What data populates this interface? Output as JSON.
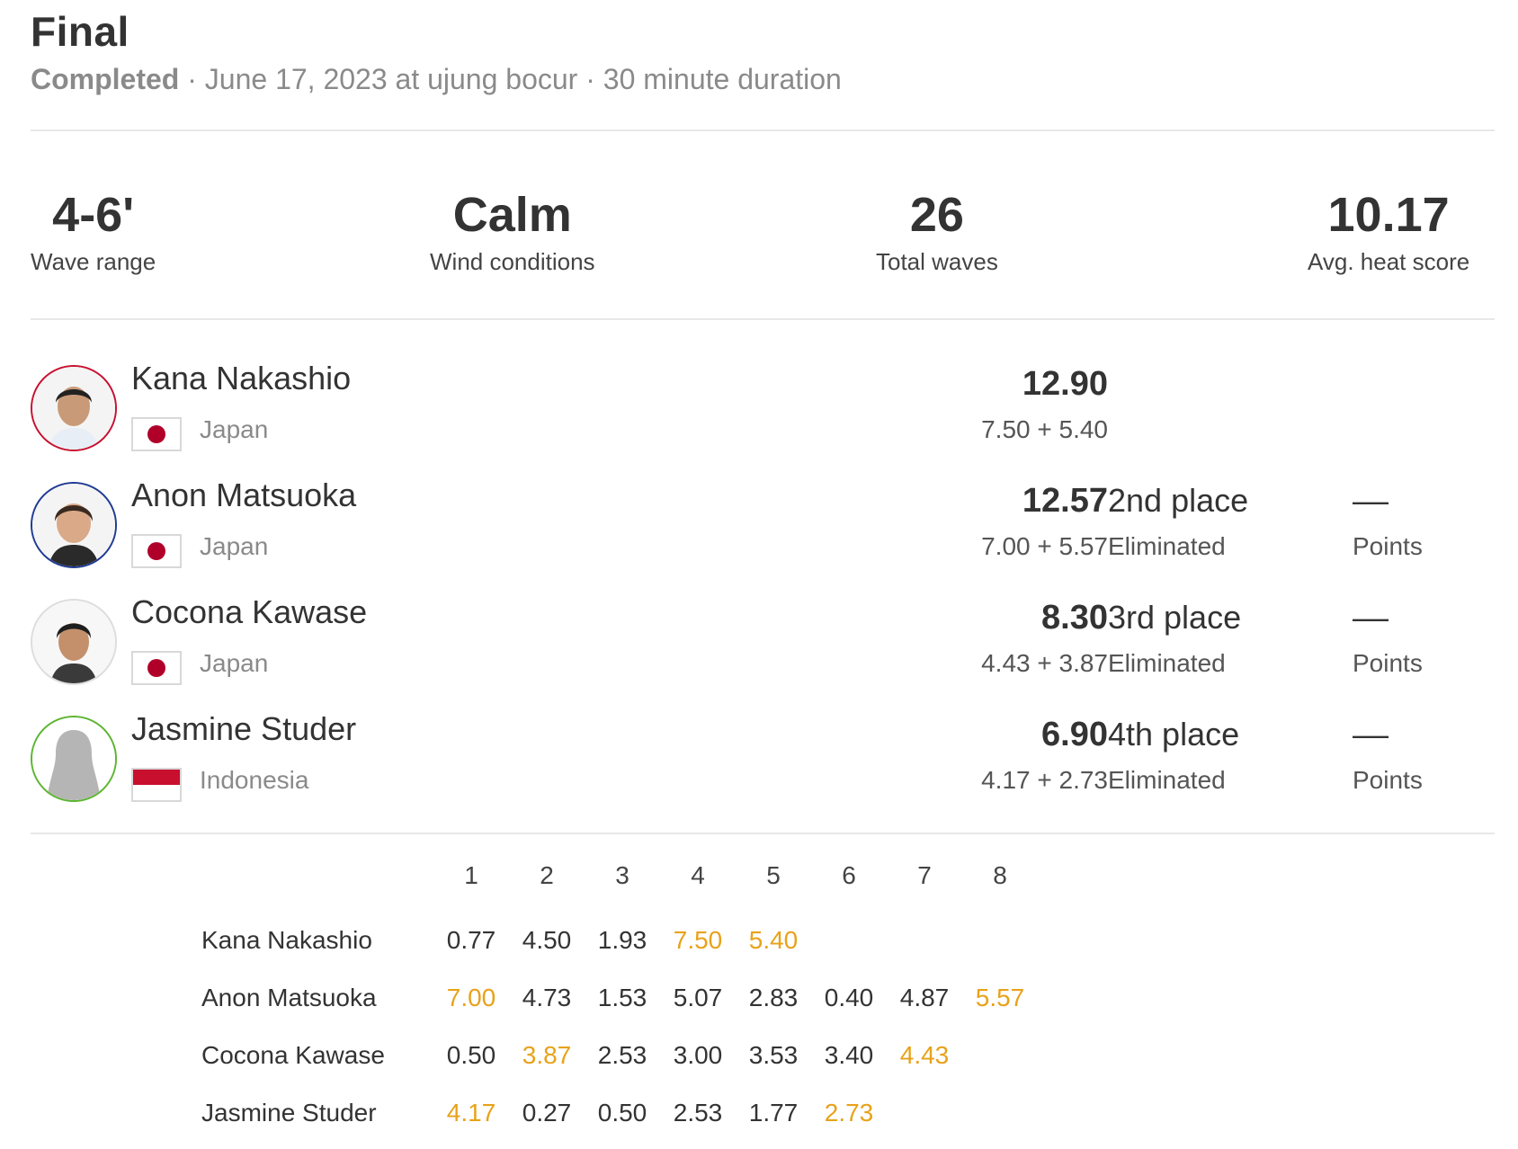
{
  "header": {
    "title": "Final",
    "status": "Completed",
    "details": " · June 17, 2023 at ujung bocur · 30 minute duration"
  },
  "stats": [
    {
      "value": "4-6'",
      "label": "Wave range"
    },
    {
      "value": "Calm",
      "label": "Wind conditions"
    },
    {
      "value": "26",
      "label": "Total waves"
    },
    {
      "value": "10.17",
      "label": "Avg. heat score"
    }
  ],
  "athletes": [
    {
      "name": "Kana Nakashio",
      "country": "Japan",
      "flag": "japan-flag",
      "total": "12.90",
      "breakdown": "7.50 + 5.40",
      "place": "",
      "status": "",
      "points": "",
      "points_label": "",
      "ring_color": "#c8102e"
    },
    {
      "name": "Anon Matsuoka",
      "country": "Japan",
      "flag": "japan-flag",
      "total": "12.57",
      "breakdown": "7.00 + 5.57",
      "place": "2nd place",
      "status": "Eliminated",
      "points": "––",
      "points_label": "Points",
      "ring_color": "#1f3a93"
    },
    {
      "name": "Cocona Kawase",
      "country": "Japan",
      "flag": "japan-flag",
      "total": "8.30",
      "breakdown": "4.43 + 3.87",
      "place": "3rd place",
      "status": "Eliminated",
      "points": "––",
      "points_label": "Points",
      "ring_color": "#dddddd"
    },
    {
      "name": "Jasmine Studer",
      "country": "Indonesia",
      "flag": "indonesia-flag",
      "total": "6.90",
      "breakdown": "4.17 + 2.73",
      "place": "4th place",
      "status": "Eliminated",
      "points": "––",
      "points_label": "Points",
      "ring_color": "#5cb531"
    }
  ],
  "waves": {
    "headers": [
      "1",
      "2",
      "3",
      "4",
      "5",
      "6",
      "7",
      "8"
    ],
    "rows": [
      {
        "name": "Kana Nakashio",
        "scores": [
          "0.77",
          "4.50",
          "1.93",
          "7.50",
          "5.40"
        ],
        "counted": [
          3,
          4
        ]
      },
      {
        "name": "Anon Matsuoka",
        "scores": [
          "7.00",
          "4.73",
          "1.53",
          "5.07",
          "2.83",
          "0.40",
          "4.87",
          "5.57"
        ],
        "counted": [
          0,
          7
        ]
      },
      {
        "name": "Cocona Kawase",
        "scores": [
          "0.50",
          "3.87",
          "2.53",
          "3.00",
          "3.53",
          "3.40",
          "4.43"
        ],
        "counted": [
          1,
          6
        ]
      },
      {
        "name": "Jasmine Studer",
        "scores": [
          "4.17",
          "0.27",
          "0.50",
          "2.53",
          "1.77",
          "2.73"
        ],
        "counted": [
          0,
          5
        ]
      }
    ],
    "highlight_color": "#e8a21a"
  }
}
